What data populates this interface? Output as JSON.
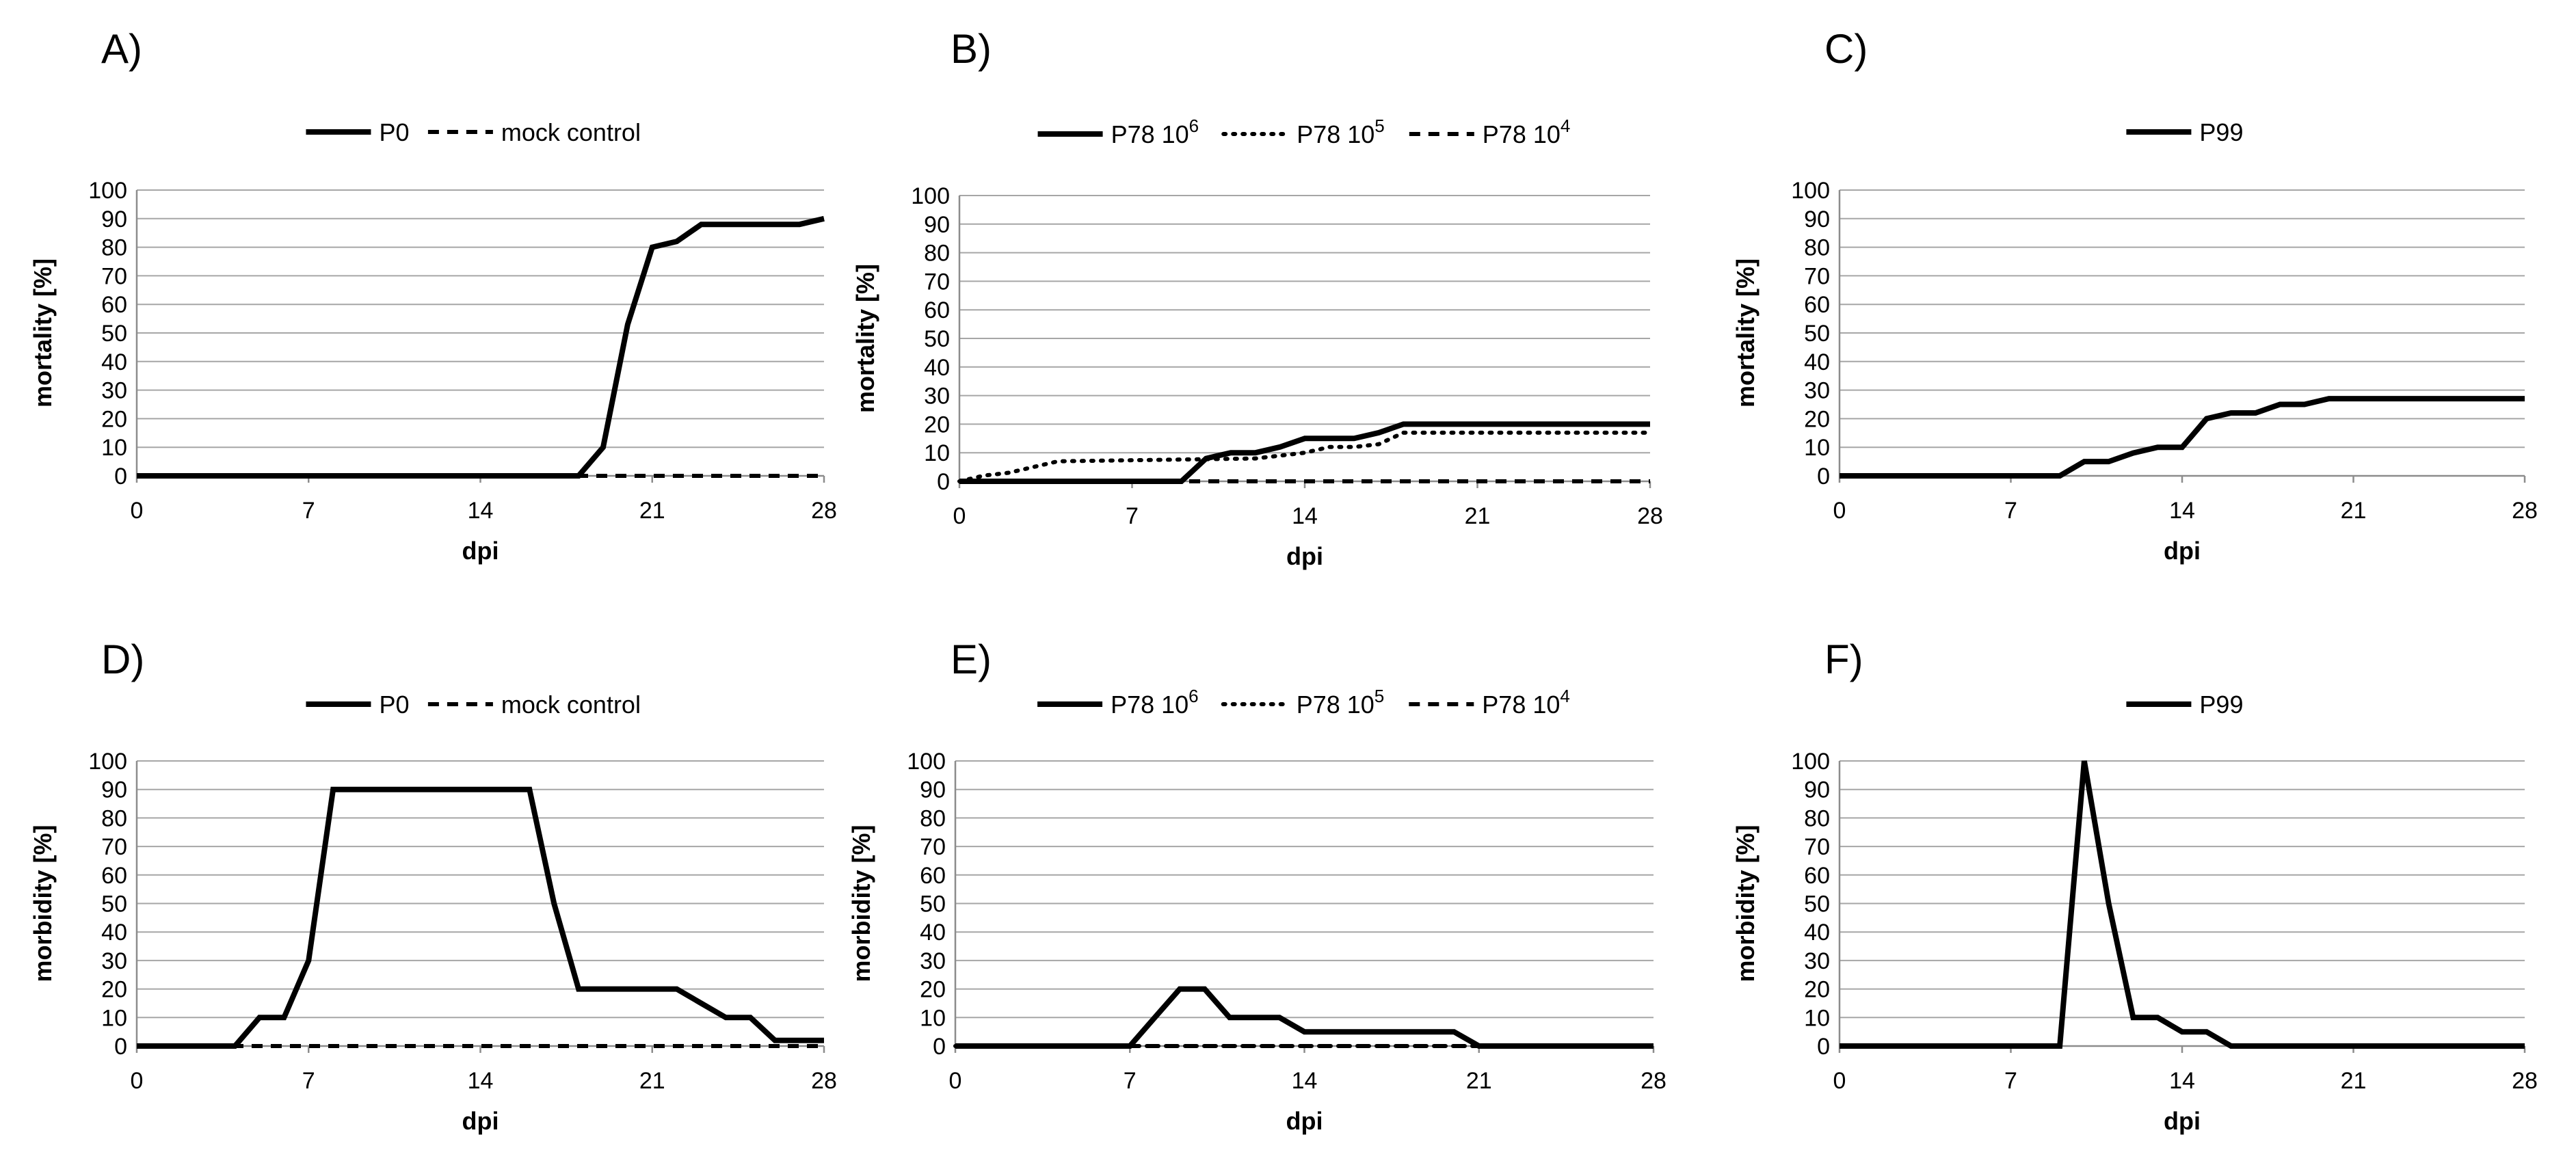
{
  "chart_data": [
    {
      "panel": "A)",
      "type": "line",
      "xlabel": "dpi",
      "ylabel": "mortality [%]",
      "xlim": [
        0,
        28
      ],
      "ylim": [
        0,
        100
      ],
      "xticks": [
        0,
        7,
        14,
        21,
        28
      ],
      "yticks": [
        0,
        10,
        20,
        30,
        40,
        50,
        60,
        70,
        80,
        90,
        100
      ],
      "grid": true,
      "legend": "top",
      "series": [
        {
          "name": "P0",
          "name_base": "P0",
          "name_exp": "",
          "style": "solid",
          "x": [
            0,
            18,
            19,
            20,
            21,
            22,
            23,
            24,
            25,
            26,
            27,
            28
          ],
          "y": [
            0,
            0,
            10,
            53,
            80,
            82,
            88,
            88,
            88,
            88,
            88,
            90
          ]
        },
        {
          "name": "mock control",
          "name_base": "mock control",
          "name_exp": "",
          "style": "dashed",
          "x": [
            0,
            28
          ],
          "y": [
            0,
            0
          ]
        }
      ]
    },
    {
      "panel": "B)",
      "type": "line",
      "xlabel": "dpi",
      "ylabel": "mortality [%]",
      "xlim": [
        0,
        28
      ],
      "ylim": [
        0,
        100
      ],
      "xticks": [
        0,
        7,
        14,
        21,
        28
      ],
      "yticks": [
        0,
        10,
        20,
        30,
        40,
        50,
        60,
        70,
        80,
        90,
        100
      ],
      "grid": true,
      "legend": "top",
      "series": [
        {
          "name": "P78 10^6",
          "name_base": "P78 10",
          "name_exp": "6",
          "style": "solid",
          "x": [
            0,
            9,
            10,
            11,
            12,
            13,
            14,
            15,
            16,
            17,
            18,
            28
          ],
          "y": [
            0,
            0,
            8,
            10,
            10,
            12,
            15,
            15,
            15,
            17,
            20,
            20
          ]
        },
        {
          "name": "P78 10^5",
          "name_base": "P78 10",
          "name_exp": "5",
          "style": "dotted",
          "x": [
            0,
            1,
            2,
            3,
            4,
            12,
            14,
            15,
            16,
            17,
            18,
            28
          ],
          "y": [
            0,
            2,
            3,
            5,
            7,
            8,
            10,
            12,
            12,
            13,
            17,
            17
          ]
        },
        {
          "name": "P78 10^4",
          "name_base": "P78 10",
          "name_exp": "4",
          "style": "dashed",
          "x": [
            0,
            28
          ],
          "y": [
            0,
            0
          ]
        }
      ]
    },
    {
      "panel": "C)",
      "type": "line",
      "xlabel": "dpi",
      "ylabel": "mortality [%]",
      "xlim": [
        0,
        28
      ],
      "ylim": [
        0,
        100
      ],
      "xticks": [
        0,
        7,
        14,
        21,
        28
      ],
      "yticks": [
        0,
        10,
        20,
        30,
        40,
        50,
        60,
        70,
        80,
        90,
        100
      ],
      "grid": true,
      "legend": "top",
      "series": [
        {
          "name": "P99",
          "name_base": "P99",
          "name_exp": "",
          "style": "solid",
          "x": [
            0,
            9,
            10,
            11,
            12,
            13,
            14,
            15,
            16,
            17,
            18,
            19,
            20,
            28
          ],
          "y": [
            0,
            0,
            5,
            5,
            8,
            10,
            10,
            20,
            22,
            22,
            25,
            25,
            27,
            27
          ]
        }
      ]
    },
    {
      "panel": "D)",
      "type": "line",
      "xlabel": "dpi",
      "ylabel": "morbidity [%]",
      "xlim": [
        0,
        28
      ],
      "ylim": [
        0,
        100
      ],
      "xticks": [
        0,
        7,
        14,
        21,
        28
      ],
      "yticks": [
        0,
        10,
        20,
        30,
        40,
        50,
        60,
        70,
        80,
        90,
        100
      ],
      "grid": true,
      "legend": "top",
      "series": [
        {
          "name": "P0",
          "name_base": "P0",
          "name_exp": "",
          "style": "solid",
          "x": [
            0,
            4,
            5,
            6,
            7,
            8,
            16,
            17,
            18,
            22,
            23,
            24,
            25,
            26,
            28
          ],
          "y": [
            0,
            0,
            10,
            10,
            30,
            90,
            90,
            50,
            20,
            20,
            15,
            10,
            10,
            2,
            2
          ]
        },
        {
          "name": "mock control",
          "name_base": "mock control",
          "name_exp": "",
          "style": "dashed",
          "x": [
            0,
            28
          ],
          "y": [
            0,
            0
          ]
        }
      ]
    },
    {
      "panel": "E)",
      "type": "line",
      "xlabel": "dpi",
      "ylabel": "morbidity [%]",
      "xlim": [
        0,
        28
      ],
      "ylim": [
        0,
        100
      ],
      "xticks": [
        0,
        7,
        14,
        21,
        28
      ],
      "yticks": [
        0,
        10,
        20,
        30,
        40,
        50,
        60,
        70,
        80,
        90,
        100
      ],
      "grid": true,
      "legend": "top",
      "series": [
        {
          "name": "P78 10^6",
          "name_base": "P78 10",
          "name_exp": "6",
          "style": "solid",
          "x": [
            0,
            7,
            8,
            9,
            10,
            11,
            12,
            13,
            14,
            15,
            20,
            21,
            28
          ],
          "y": [
            0,
            0,
            10,
            20,
            20,
            10,
            10,
            10,
            5,
            5,
            5,
            0,
            0
          ]
        },
        {
          "name": "P78 10^5",
          "name_base": "P78 10",
          "name_exp": "5",
          "style": "dotted",
          "x": [
            0,
            28
          ],
          "y": [
            0,
            0
          ]
        },
        {
          "name": "P78 10^4",
          "name_base": "P78 10",
          "name_exp": "4",
          "style": "dashed",
          "x": [
            0,
            21
          ],
          "y": [
            0,
            0
          ]
        }
      ]
    },
    {
      "panel": "F)",
      "type": "line",
      "xlabel": "dpi",
      "ylabel": "morbidity [%]",
      "xlim": [
        0,
        28
      ],
      "ylim": [
        0,
        100
      ],
      "xticks": [
        0,
        7,
        14,
        21,
        28
      ],
      "yticks": [
        0,
        10,
        20,
        30,
        40,
        50,
        60,
        70,
        80,
        90,
        100
      ],
      "grid": true,
      "legend": "top",
      "series": [
        {
          "name": "P99",
          "name_base": "P99",
          "name_exp": "",
          "style": "solid",
          "x": [
            0,
            9,
            10,
            11,
            12,
            13,
            14,
            15,
            16,
            28
          ],
          "y": [
            0,
            0,
            100,
            50,
            10,
            10,
            5,
            5,
            0,
            0
          ]
        }
      ]
    }
  ]
}
